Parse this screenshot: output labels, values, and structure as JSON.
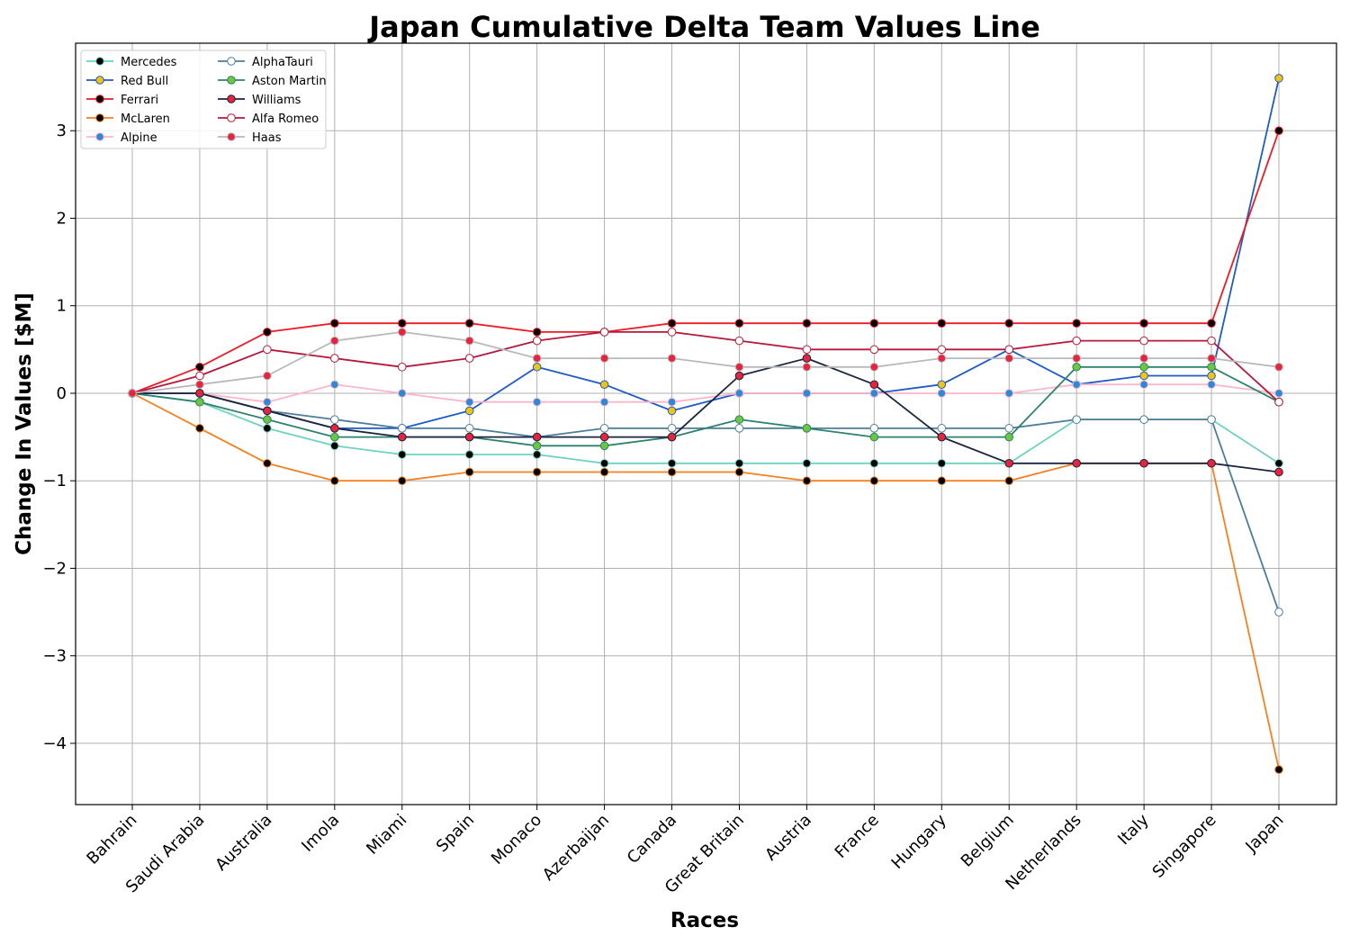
{
  "chart_data": {
    "type": "line",
    "title": "Japan Cumulative Delta Team Values Line",
    "xlabel": "Races",
    "ylabel": "Change In Values [$M]",
    "ylim": [
      -4.7,
      4.0
    ],
    "yticks": [
      -4,
      -3,
      -2,
      -1,
      0,
      1,
      2,
      3
    ],
    "ytick_labels": [
      "−4",
      "−3",
      "−2",
      "−1",
      "0",
      "1",
      "2",
      "3"
    ],
    "grid": true,
    "legend_position": "top-left",
    "categories": [
      "Bahrain",
      "Saudi Arabia",
      "Australia",
      "Imola",
      "Miami",
      "Spain",
      "Monaco",
      "Azerbaijan",
      "Canada",
      "Great Britain",
      "Austria",
      "France",
      "Hungary",
      "Belgium",
      "Netherlands",
      "Italy",
      "Singapore",
      "Japan"
    ],
    "series": [
      {
        "name": "Mercedes",
        "color": "#6cd3bf",
        "marker_fill": "#000000",
        "marker_edge": "#6cd3bf",
        "values": [
          0,
          -0.1,
          -0.4,
          -0.6,
          -0.7,
          -0.7,
          -0.7,
          -0.8,
          -0.8,
          -0.8,
          -0.8,
          -0.8,
          -0.8,
          -0.8,
          -0.3,
          -0.3,
          -0.3,
          -0.8
        ]
      },
      {
        "name": "Red Bull",
        "color": "#1e5bc6",
        "marker_fill": "#f1c40f",
        "marker_edge": "#1e5bc6",
        "values": [
          0,
          0,
          -0.2,
          -0.4,
          -0.4,
          -0.2,
          0.3,
          0.1,
          -0.2,
          0,
          0,
          0,
          0.1,
          0.5,
          0.1,
          0.2,
          0.2,
          3.6
        ]
      },
      {
        "name": "Ferrari",
        "color": "#ed1c24",
        "marker_fill": "#000000",
        "marker_edge": "#ed1c24",
        "values": [
          0,
          0.3,
          0.7,
          0.8,
          0.8,
          0.8,
          0.7,
          0.7,
          0.8,
          0.8,
          0.8,
          0.8,
          0.8,
          0.8,
          0.8,
          0.8,
          0.8,
          3.0
        ]
      },
      {
        "name": "McLaren",
        "color": "#f58020",
        "marker_fill": "#000000",
        "marker_edge": "#f58020",
        "values": [
          0,
          -0.4,
          -0.8,
          -1.0,
          -1.0,
          -0.9,
          -0.9,
          -0.9,
          -0.9,
          -0.9,
          -1.0,
          -1.0,
          -1.0,
          -1.0,
          -0.8,
          -0.8,
          -0.8,
          -4.3
        ]
      },
      {
        "name": "Alpine",
        "color": "#ffb6c8",
        "marker_fill": "#2b8ad8",
        "marker_edge": "#ffb6c8",
        "values": [
          0,
          0,
          -0.1,
          0.1,
          0,
          -0.1,
          -0.1,
          -0.1,
          -0.1,
          0,
          0,
          0,
          0,
          0,
          0.1,
          0.1,
          0.1,
          0
        ]
      },
      {
        "name": "AlphaTauri",
        "color": "#4e7c9b",
        "marker_fill": "#ffffff",
        "marker_edge": "#4e7c9b",
        "values": [
          0,
          0,
          -0.2,
          -0.3,
          -0.4,
          -0.4,
          -0.5,
          -0.4,
          -0.4,
          -0.4,
          -0.4,
          -0.4,
          -0.4,
          -0.4,
          -0.3,
          -0.3,
          -0.3,
          -2.5
        ]
      },
      {
        "name": "Aston Martin",
        "color": "#2d826d",
        "marker_fill": "#6cc63f",
        "marker_edge": "#2d826d",
        "values": [
          0,
          -0.1,
          -0.3,
          -0.5,
          -0.5,
          -0.5,
          -0.6,
          -0.6,
          -0.5,
          -0.3,
          -0.4,
          -0.5,
          -0.5,
          -0.5,
          0.3,
          0.3,
          0.3,
          -0.1
        ]
      },
      {
        "name": "Williams",
        "color": "#1a2540",
        "marker_fill": "#e8243c",
        "marker_edge": "#1a2540",
        "values": [
          0,
          0,
          -0.2,
          -0.4,
          -0.5,
          -0.5,
          -0.5,
          -0.5,
          -0.5,
          0.2,
          0.4,
          0.1,
          -0.5,
          -0.8,
          -0.8,
          -0.8,
          -0.8,
          -0.9
        ]
      },
      {
        "name": "Alfa Romeo",
        "color": "#b5183a",
        "marker_fill": "#ffffff",
        "marker_edge": "#b5183a",
        "values": [
          0,
          0.2,
          0.5,
          0.4,
          0.3,
          0.4,
          0.6,
          0.7,
          0.7,
          0.6,
          0.5,
          0.5,
          0.5,
          0.5,
          0.6,
          0.6,
          0.6,
          -0.1
        ]
      },
      {
        "name": "Haas",
        "color": "#b6babd",
        "marker_fill": "#e8243c",
        "marker_edge": "#b6babd",
        "values": [
          0,
          0.1,
          0.2,
          0.6,
          0.7,
          0.6,
          0.4,
          0.4,
          0.4,
          0.3,
          0.3,
          0.3,
          0.4,
          0.4,
          0.4,
          0.4,
          0.4,
          0.3
        ]
      }
    ]
  }
}
